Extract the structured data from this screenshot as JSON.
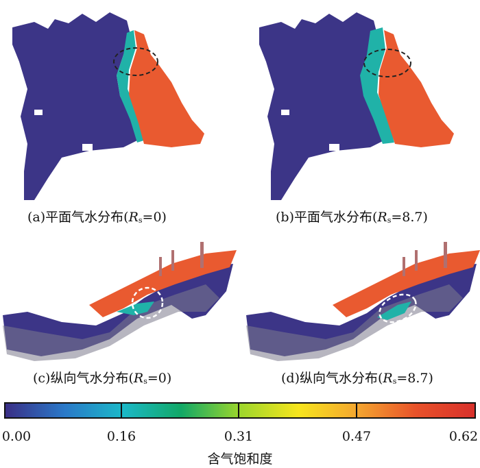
{
  "panels": [
    {
      "id": "a",
      "caption_prefix": "(a)平面气水分布(",
      "var": "R",
      "sub": "s",
      "caption_suffix": "=0)"
    },
    {
      "id": "b",
      "caption_prefix": "(b)平面气水分布(",
      "var": "R",
      "sub": "s",
      "caption_suffix": "=8.7)"
    },
    {
      "id": "c",
      "caption_prefix": "(c)纵向气水分布(",
      "var": "R",
      "sub": "s",
      "caption_suffix": "=0)"
    },
    {
      "id": "d",
      "caption_prefix": "(d)纵向气水分布(",
      "var": "R",
      "sub": "s",
      "caption_suffix": "=8.7)"
    }
  ],
  "colorbar": {
    "title": "含气饱和度",
    "tick_labels": [
      "0.00",
      "0.16",
      "0.31",
      "0.47",
      "0.62"
    ],
    "range": [
      0.0,
      0.62
    ],
    "colors": [
      "#3a2f86",
      "#2a78c8",
      "#1bb8c8",
      "#12a866",
      "#9dd62c",
      "#f7e51d",
      "#f4a630",
      "#e8522a",
      "#d8312b"
    ]
  },
  "colors": {
    "water": "#3c3587",
    "transition": "#20b2a8",
    "gas": "#e95a30",
    "outline_dash": "#222222",
    "outline_white": "#ffffff"
  }
}
